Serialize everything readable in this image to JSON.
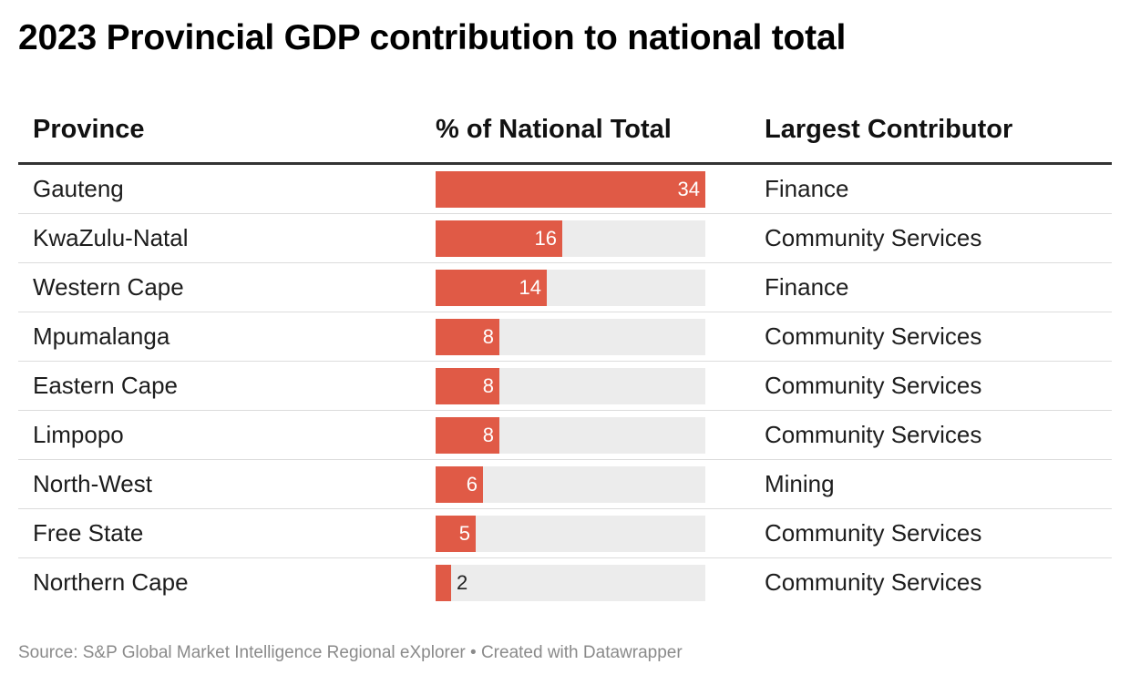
{
  "title": "2023 Provincial GDP contribution to national total",
  "footer": {
    "source": "Source: S&P Global Market Intelligence Regional eXplorer • Created with Datawrapper"
  },
  "colors": {
    "bar": "#e05a46",
    "track": "#ececec",
    "header_rule": "#333333",
    "row_rule": "#dcdcdc"
  },
  "chart_data": {
    "type": "table",
    "title": "2023 Provincial GDP contribution to national total",
    "columns": [
      "Province",
      "% of National Total",
      "Largest Contributor"
    ],
    "bar_column": "% of National Total",
    "bar_max": 34,
    "rows": [
      {
        "province": "Gauteng",
        "value": 34,
        "contributor": "Finance"
      },
      {
        "province": "KwaZulu-Natal",
        "value": 16,
        "contributor": "Community Services"
      },
      {
        "province": "Western Cape",
        "value": 14,
        "contributor": "Finance"
      },
      {
        "province": "Mpumalanga",
        "value": 8,
        "contributor": "Community Services"
      },
      {
        "province": "Eastern Cape",
        "value": 8,
        "contributor": "Community Services"
      },
      {
        "province": "Limpopo",
        "value": 8,
        "contributor": "Community Services"
      },
      {
        "province": "North-West",
        "value": 6,
        "contributor": "Mining"
      },
      {
        "province": "Free State",
        "value": 5,
        "contributor": "Community Services"
      },
      {
        "province": "Northern Cape",
        "value": 2,
        "contributor": "Community Services"
      }
    ]
  }
}
